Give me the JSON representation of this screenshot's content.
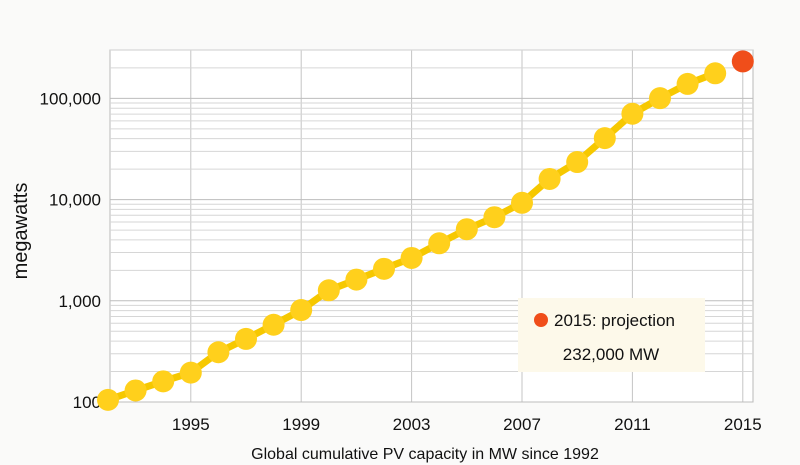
{
  "chart_data": {
    "type": "line",
    "title": "",
    "xlabel": "Global cumulative PV capacity in MW since 1992",
    "ylabel": "megawatts",
    "yscale": "log",
    "ylim": [
      100,
      300000
    ],
    "xlim": [
      1992,
      2015
    ],
    "x_ticks": [
      1995,
      1999,
      2003,
      2007,
      2011,
      2015
    ],
    "y_ticks": [
      100,
      1000,
      10000,
      100000
    ],
    "y_tick_labels": [
      "100",
      "1,000",
      "10,000",
      "100,000"
    ],
    "grid": true,
    "series": [
      {
        "name": "Global cumulative PV capacity",
        "color": "#ffd01c",
        "line_color": "#f6c800",
        "x": [
          1992,
          1993,
          1994,
          1995,
          1996,
          1997,
          1998,
          1999,
          2000,
          2001,
          2002,
          2003,
          2004,
          2005,
          2006,
          2007,
          2008,
          2009,
          2010,
          2011,
          2012,
          2013,
          2014
        ],
        "values": [
          105,
          130,
          160,
          195,
          310,
          420,
          580,
          810,
          1270,
          1620,
          2070,
          2650,
          3700,
          5100,
          6700,
          9300,
          16000,
          23500,
          40500,
          70500,
          100500,
          139000,
          177000
        ]
      },
      {
        "name": "2015: projection",
        "color": "#f04e1a",
        "x": [
          2015
        ],
        "values": [
          232000
        ]
      }
    ],
    "annotation": {
      "legend_label": "2015: projection",
      "value_text": "232,000 MW",
      "marker_color": "#f04e1a",
      "box_color": "#fdf9ea"
    }
  }
}
